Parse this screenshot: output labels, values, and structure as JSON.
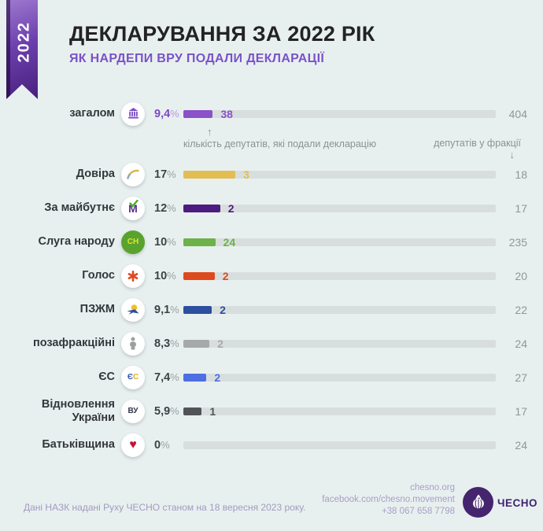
{
  "ribbon": {
    "year": "2022"
  },
  "header": {
    "title": "ДЕКЛАРУВАННЯ ЗА 2022 РІК",
    "subtitle": "ЯК НАРДЕПИ ВРУ ПОДАЛИ ДЕКЛАРАЦІЇ"
  },
  "annotations": {
    "up_arrow": "↑",
    "down_arrow": "↓",
    "note_left": "кількість депутатів, які подали декларацію",
    "note_right": "депутатів у фракції"
  },
  "chart_data": {
    "type": "bar",
    "title": "ДЕКЛАРУВАННЯ ЗА 2022 РІК",
    "subtitle": "ЯК НАРДЕПИ ВРУ ПОДАЛИ ДЕКЛАРАЦІЇ",
    "percent_sign": "%",
    "note_left": "кількість депутатів, які подали декларацію",
    "note_right": "депутатів у фракції",
    "track_color": "#d8dedd",
    "rows": [
      {
        "label": "загалом",
        "icon": "parliament-building-icon",
        "pct": "9,4",
        "filed": 38,
        "total": 404,
        "color": "#8a51c9",
        "pct_color": "#7d49c4",
        "pct_sign_color": "#b49ad8"
      },
      {
        "label": "Довіра",
        "icon": "dovira-arc-icon",
        "pct": "17",
        "filed": 3,
        "total": 18,
        "color": "#e2bd54"
      },
      {
        "label": "За майбутнє",
        "icon": "za-maibutnie-check-icon",
        "pct": "12",
        "filed": 2,
        "total": 17,
        "color": "#4e1b80"
      },
      {
        "label": "Слуга народу",
        "icon": "sluha-narodu-badge-icon",
        "pct": "10",
        "filed": 24,
        "total": 235,
        "color": "#6cb14a"
      },
      {
        "label": "Голос",
        "icon": "holos-asterisk-icon",
        "pct": "10",
        "filed": 2,
        "total": 20,
        "color": "#dd4a1e"
      },
      {
        "label": "ПЗЖМ",
        "icon": "pzzhm-bird-icon",
        "pct": "9,1",
        "filed": 2,
        "total": 22,
        "color": "#2c4f9e"
      },
      {
        "label": "позафракційні",
        "icon": "nonfaction-person-icon",
        "pct": "8,3",
        "filed": 2,
        "total": 24,
        "color": "#a6a9a9"
      },
      {
        "label": "ЄС",
        "icon": "yes-party-icon",
        "pct": "7,4",
        "filed": 2,
        "total": 27,
        "color": "#4d6fe3"
      },
      {
        "label": "Відновлення України",
        "icon": "vu-letters-icon",
        "pct": "5,9",
        "filed": 1,
        "total": 17,
        "color": "#515456"
      },
      {
        "label": "Батьківщина",
        "icon": "batkivshchyna-heart-icon",
        "pct": "0",
        "filed": 0,
        "total": 24,
        "color": "#cf2a3e"
      }
    ]
  },
  "footer": {
    "source": "Дані НАЗК надані Руху ЧЕСНО станом на 18 вересня 2023 року.",
    "contacts": [
      "chesno.org",
      "facebook.com/chesno.movement",
      "+38 067 658 7798"
    ],
    "logo_text": "ЧЕСНО"
  }
}
